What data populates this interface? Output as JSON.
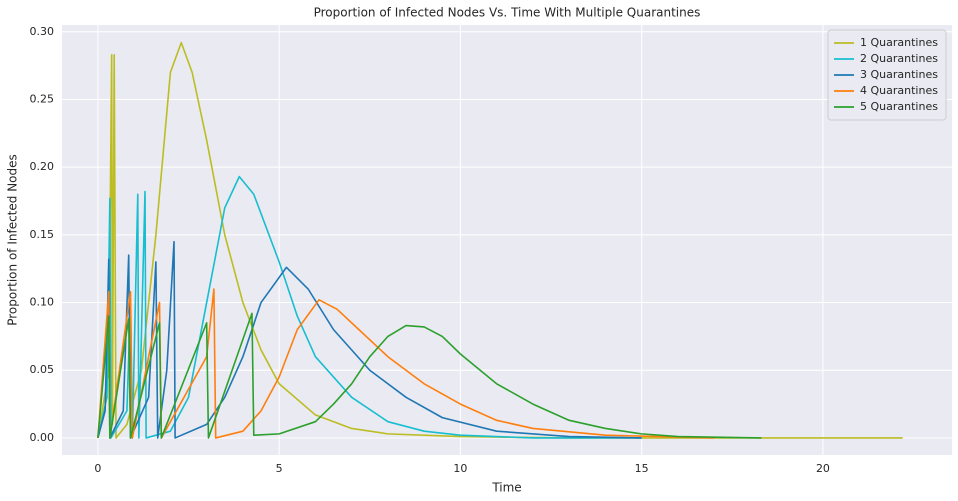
{
  "chart_data": {
    "type": "line",
    "title": "Proportion of Infected Nodes Vs. Time With Multiple Quarantines",
    "x_label": "Time",
    "y_label": "Proportion of Infected Nodes",
    "xlim": [
      -0.99,
      23.56
    ],
    "ylim": [
      -0.0126,
      0.305
    ],
    "xticks": [
      0,
      5,
      10,
      15,
      20
    ],
    "yticks": [
      {
        "value": 0,
        "label": "0.00"
      },
      {
        "value": 0.05,
        "label": "0.05"
      },
      {
        "value": 0.1,
        "label": "0.10"
      },
      {
        "value": 0.15,
        "label": "0.15"
      },
      {
        "value": 0.2,
        "label": "0.20"
      },
      {
        "value": 0.25,
        "label": "0.25"
      },
      {
        "value": 0.3,
        "label": "0.30"
      }
    ],
    "grid": true,
    "legend": "upper-right",
    "series": [
      {
        "name": "1 Quarantines",
        "color": "#bcbd22",
        "x": [
          0,
          0.3,
          0.38,
          0.4,
          0.45,
          0.5,
          0.8,
          1.2,
          1.6,
          2.0,
          2.3,
          2.6,
          3.0,
          3.5,
          4.0,
          4.5,
          5.0,
          6.0,
          7.0,
          8.0,
          10,
          13,
          22.2
        ],
        "values": [
          0,
          0.05,
          0.283,
          0.01,
          0.283,
          0,
          0.01,
          0.05,
          0.15,
          0.27,
          0.292,
          0.27,
          0.22,
          0.15,
          0.1,
          0.065,
          0.04,
          0.017,
          0.007,
          0.003,
          0.001,
          0,
          0
        ]
      },
      {
        "name": "2 Quarantines",
        "color": "#17becf",
        "x": [
          0,
          0.25,
          0.33,
          0.36,
          0.8,
          0.9,
          0.95,
          1.1,
          1.13,
          1.3,
          1.33,
          2.0,
          2.5,
          3.0,
          3.5,
          3.9,
          4.3,
          5.0,
          5.5,
          6.0,
          7,
          8,
          9,
          10,
          12,
          15
        ],
        "values": [
          0,
          0.03,
          0.177,
          0,
          0.02,
          0.1,
          0,
          0.18,
          0,
          0.182,
          0,
          0.005,
          0.03,
          0.1,
          0.17,
          0.193,
          0.18,
          0.13,
          0.09,
          0.06,
          0.03,
          0.012,
          0.005,
          0.002,
          0,
          0
        ]
      },
      {
        "name": "3 Quarantines",
        "color": "#1f77b4",
        "x": [
          0,
          0.2,
          0.3,
          0.33,
          0.7,
          0.85,
          0.9,
          1.4,
          1.6,
          1.65,
          1.9,
          2.1,
          2.13,
          3.0,
          3.5,
          4.0,
          4.5,
          5.2,
          5.8,
          6.5,
          7.5,
          8.5,
          9.5,
          11,
          13,
          15
        ],
        "values": [
          0,
          0.02,
          0.132,
          0,
          0.02,
          0.135,
          0,
          0.03,
          0.13,
          0,
          0.05,
          0.145,
          0,
          0.01,
          0.03,
          0.06,
          0.1,
          0.126,
          0.11,
          0.08,
          0.05,
          0.03,
          0.015,
          0.005,
          0.001,
          0
        ]
      },
      {
        "name": "4 Quarantines",
        "color": "#ff7f0e",
        "x": [
          0,
          0.3,
          0.33,
          0.9,
          0.95,
          1.7,
          1.75,
          3.0,
          3.2,
          3.25,
          4,
          4.5,
          5,
          5.5,
          6.1,
          6.6,
          7.2,
          8,
          9,
          10,
          11,
          12,
          14,
          17
        ],
        "values": [
          0,
          0.108,
          0,
          0.108,
          0,
          0.1,
          0,
          0.06,
          0.11,
          0,
          0.005,
          0.02,
          0.045,
          0.08,
          0.102,
          0.095,
          0.08,
          0.06,
          0.04,
          0.025,
          0.013,
          0.007,
          0.002,
          0
        ]
      },
      {
        "name": "5 Quarantines",
        "color": "#2ca02c",
        "x": [
          0,
          0.3,
          0.33,
          0.85,
          0.9,
          1.7,
          1.75,
          3.0,
          3.05,
          4.25,
          4.3,
          5,
          6,
          6.5,
          7,
          7.5,
          8,
          8.5,
          9,
          9.5,
          10,
          11,
          12,
          13,
          14,
          15,
          16,
          18.3
        ],
        "values": [
          0,
          0.09,
          0,
          0.088,
          0,
          0.085,
          0,
          0.085,
          0,
          0.092,
          0.002,
          0.003,
          0.012,
          0.025,
          0.04,
          0.06,
          0.075,
          0.083,
          0.082,
          0.075,
          0.062,
          0.04,
          0.025,
          0.013,
          0.007,
          0.003,
          0.001,
          0
        ]
      }
    ]
  }
}
